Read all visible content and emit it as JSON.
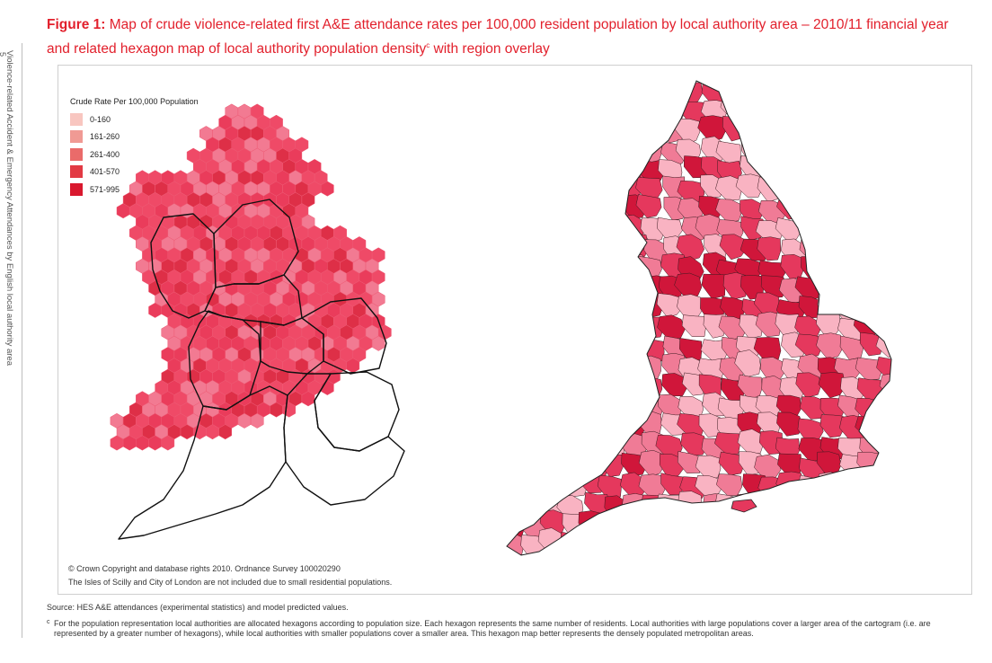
{
  "page": {
    "page_number": "5",
    "running_title": "Violence-related Accident & Emergency Attendances by English local authority area"
  },
  "figure": {
    "label": "Figure 1:",
    "title_line1": "Map of crude violence-related first A&E attendance rates per 100,000 resident population by local authority area – 2010/11 financial year",
    "title_line2": "and related hexagon map of local authority population density",
    "title_sup": "c",
    "title_end": " with region overlay"
  },
  "legend": {
    "title": "Crude Rate Per 100,000 Population",
    "items": [
      {
        "label": "0-160",
        "color": "#f8c6c0"
      },
      {
        "label": "161-260",
        "color": "#f09a94"
      },
      {
        "label": "261-400",
        "color": "#ea6b6a"
      },
      {
        "label": "401-570",
        "color": "#e23a44"
      },
      {
        "label": "571-995",
        "color": "#d9182e"
      }
    ]
  },
  "map_colors": {
    "hex_main": "#ef4a67",
    "hex_alt": "#ea3c5b",
    "hex_light": "#f27a92",
    "hex_dark": "#de2f47",
    "region_stroke": "#111111",
    "la_light": "#f9b3c2",
    "la_mid": "#f07b96",
    "la_strong": "#e5385d",
    "la_dark": "#d0163a"
  },
  "notes": {
    "copyright": "© Crown Copyright and database rights 2010. Ordnance Survey 100020290",
    "exclusions": "The Isles of Scilly and City of London are not included due to small residential populations.",
    "source": "Source: HES A&E attendances (experimental statistics) and model predicted values.",
    "footnote_mark": "c",
    "footnote": "For the population representation local authorities are allocated hexagons according to population size. Each hexagon represents the same number of residents. Local authorities with large populations cover a larger area of the cartogram (i.e. are represented by a greater number of hexagons), while local authorities with smaller populations cover a smaller area. This hexagon map better represents the densely populated metropolitan areas."
  }
}
